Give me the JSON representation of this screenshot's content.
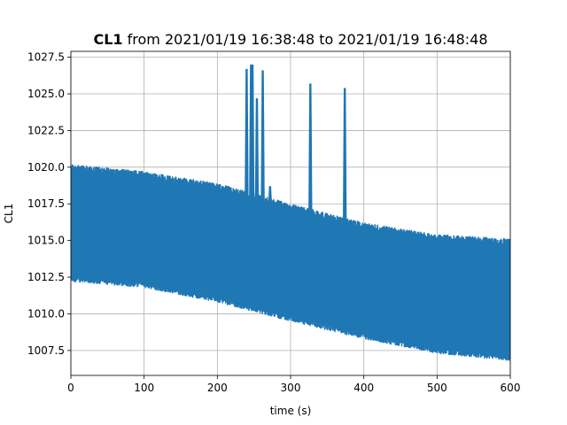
{
  "chart_data": {
    "type": "line",
    "title_bold": "CL1",
    "title_rest": " from 2021/01/19 16:38:48 to 2021/01/19 16:48:48",
    "xlabel": "time (s)",
    "ylabel": "CL1",
    "xlim": [
      0,
      600
    ],
    "ylim": [
      1005.8,
      1027.9
    ],
    "x_ticks": [
      0,
      100,
      200,
      300,
      400,
      500,
      600
    ],
    "x_tick_labels": [
      "0",
      "100",
      "200",
      "300",
      "400",
      "500",
      "600"
    ],
    "y_ticks": [
      1007.5,
      1010.0,
      1012.5,
      1015.0,
      1017.5,
      1020.0,
      1022.5,
      1025.0,
      1027.5
    ],
    "y_tick_labels": [
      "1007.5",
      "1010.0",
      "1012.5",
      "1015.0",
      "1017.5",
      "1020.0",
      "1022.5",
      "1025.0",
      "1027.5"
    ],
    "grid": true,
    "series_color": "#1f77b4",
    "band_envelope": {
      "x": [
        0,
        100,
        200,
        300,
        400,
        500,
        600
      ],
      "upper": [
        1020.2,
        1019.7,
        1018.9,
        1017.5,
        1016.2,
        1015.4,
        1015.1
      ],
      "lower": [
        1012.2,
        1011.8,
        1010.8,
        1009.5,
        1008.3,
        1007.3,
        1006.8
      ]
    },
    "spikes": [
      {
        "x": 240,
        "y": 1026.7
      },
      {
        "x": 246,
        "y": 1027.0
      },
      {
        "x": 248,
        "y": 1027.0
      },
      {
        "x": 254,
        "y": 1024.7
      },
      {
        "x": 262,
        "y": 1026.6
      },
      {
        "x": 272,
        "y": 1018.7
      },
      {
        "x": 327,
        "y": 1025.7
      },
      {
        "x": 374,
        "y": 1025.4
      }
    ]
  }
}
